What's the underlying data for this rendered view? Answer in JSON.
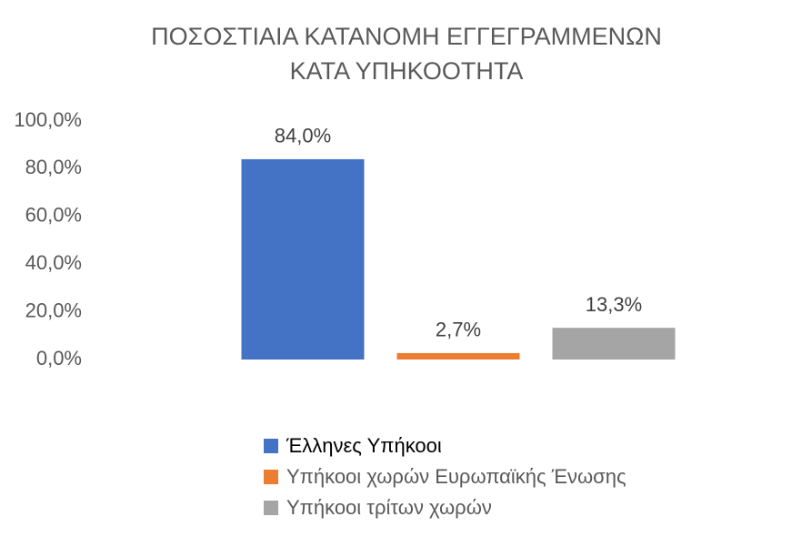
{
  "chart_data": {
    "type": "bar",
    "title": [
      "ΠΟΣΟΣΤΙΑΙΑ ΚΑΤΑΝΟΜΗ  ΕΓΓΕΓΡΑΜΜΕΝΩΝ",
      "ΚΑΤΑ ΥΠΗΚΟΟΤΗΤΑ"
    ],
    "categories": [
      null
    ],
    "series": [
      {
        "name": "Έλληνες Υπήκοοι",
        "color": "#4472c4",
        "values": [
          84.0
        ],
        "value_labels": [
          "84,0%"
        ]
      },
      {
        "name": "Υπήκοοι χωρών Ευρωπαϊκής Ένωσης",
        "color": "#ed7d31",
        "values": [
          2.7
        ],
        "value_labels": [
          "2,7%"
        ]
      },
      {
        "name": "Υπήκοοι τρίτων χωρών",
        "color": "#a5a5a5",
        "values": [
          13.3
        ],
        "value_labels": [
          "13,3%"
        ]
      }
    ],
    "ylim": [
      0,
      100
    ],
    "yticks": [
      {
        "value": 0,
        "label": "0,0%"
      },
      {
        "value": 20,
        "label": "20,0%"
      },
      {
        "value": 40,
        "label": "40,0%"
      },
      {
        "value": 60,
        "label": "60,0%"
      },
      {
        "value": 80,
        "label": "80,0%"
      },
      {
        "value": 100,
        "label": "100,0%"
      }
    ],
    "grid": false,
    "legend": "bottom"
  }
}
